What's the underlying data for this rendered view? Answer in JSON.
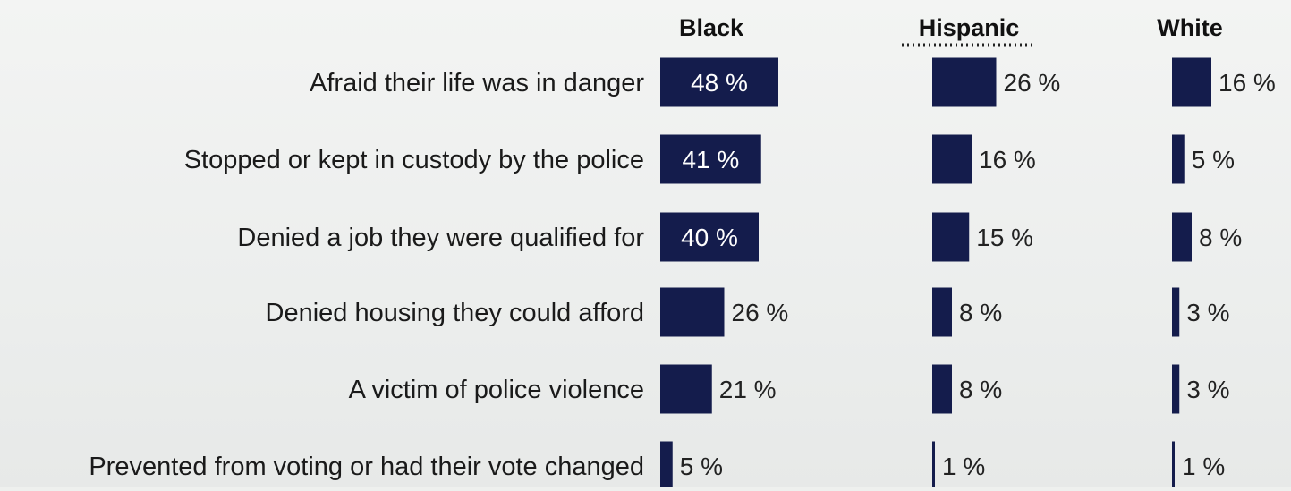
{
  "chart_data": {
    "type": "bar",
    "orientation": "horizontal",
    "layout": "small-multiples",
    "categories": [
      "Afraid their life was in danger",
      "Stopped or kept in custody by the police",
      "Denied a job they were qualified for",
      "Denied housing they could afford",
      "A victim of police violence",
      "Prevented from voting or had their vote changed"
    ],
    "series": [
      {
        "name": "Black",
        "values": [
          48,
          41,
          40,
          26,
          21,
          5
        ],
        "labels": [
          "48 %",
          "41 %",
          "40 %",
          "26 %",
          "21 %",
          "5 %"
        ]
      },
      {
        "name": "Hispanic",
        "values": [
          26,
          16,
          15,
          8,
          8,
          1
        ],
        "labels": [
          "26 %",
          "16 %",
          "15 %",
          "8 %",
          "8 %",
          "1 %"
        ]
      },
      {
        "name": "White",
        "values": [
          16,
          5,
          8,
          3,
          3,
          1
        ],
        "labels": [
          "16 %",
          "5 %",
          "8 %",
          "3 %",
          "3 %",
          "1 %"
        ]
      }
    ],
    "bar_color": "#141c4c",
    "label_inside_color": "#ffffff",
    "label_outside_color": "#222222",
    "grid": false
  }
}
